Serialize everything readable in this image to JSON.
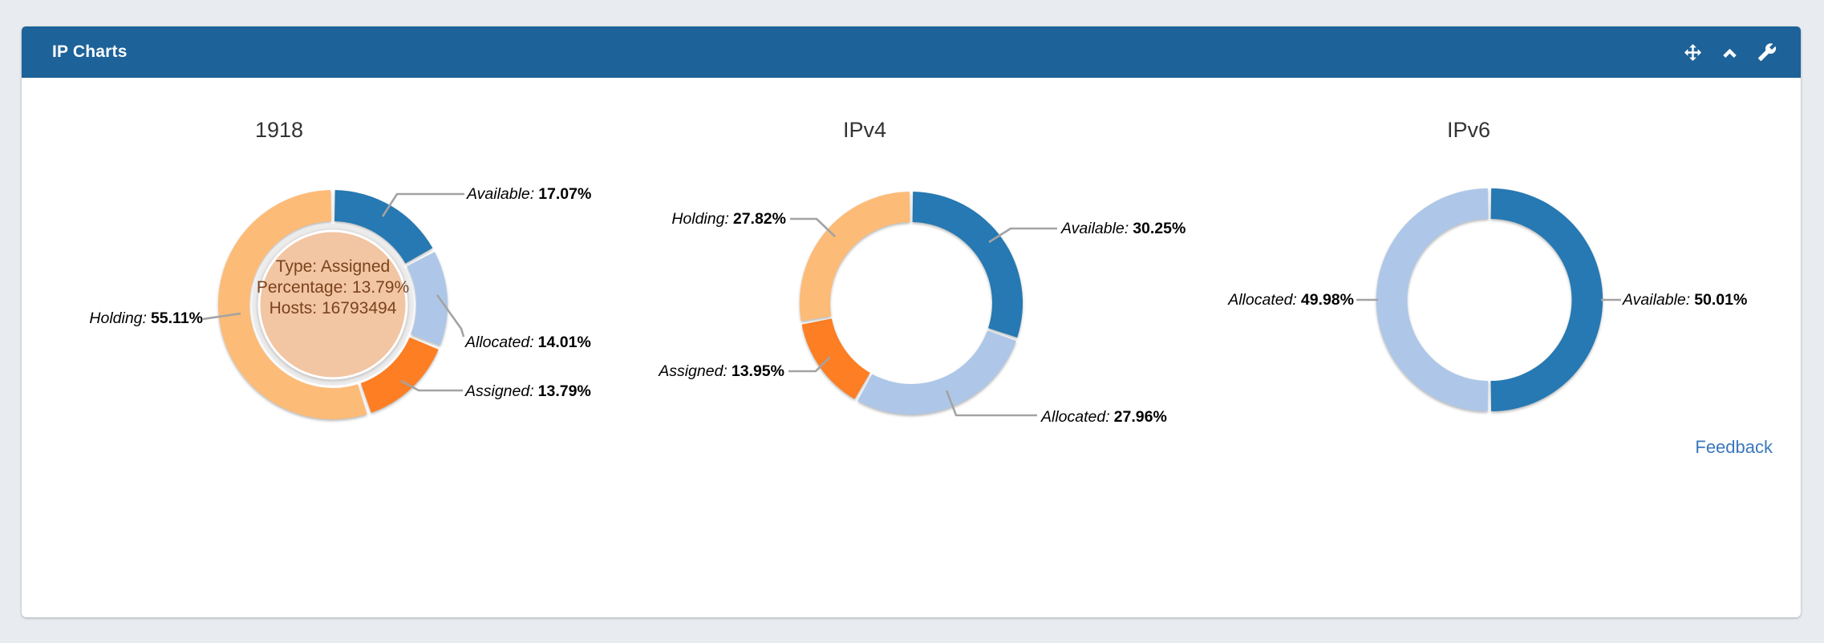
{
  "header": {
    "title": "IP Charts",
    "icons": [
      {
        "name": "move-icon"
      },
      {
        "name": "collapse-icon"
      },
      {
        "name": "wrench-icon"
      }
    ]
  },
  "footer": {
    "feedback_label": "Feedback"
  },
  "colors": {
    "header_bg": "#1d6299",
    "available": "#2679b2",
    "allocated": "#aec7e8",
    "assigned": "#fd7e23",
    "holding": "#fdbb78",
    "tooltip_bg": "#f2c5a3",
    "tooltip_text": "#7a431d",
    "leader_line": "#a3a3a3",
    "feedback_link": "#3a78bc"
  },
  "chart_data": [
    {
      "type": "pie",
      "title": "1918",
      "legend_position": "callout-labels",
      "slices": [
        {
          "name": "Available:",
          "value": 17.07,
          "display": "17.07%",
          "color": "#2679b2"
        },
        {
          "name": "Allocated:",
          "value": 14.01,
          "display": "14.01%",
          "color": "#aec7e8"
        },
        {
          "name": "Assigned:",
          "value": 13.79,
          "display": "13.79%",
          "color": "#fd7e23"
        },
        {
          "name": "Holding:",
          "value": 55.11,
          "display": "55.11%",
          "color": "#fdbb78"
        }
      ],
      "center_tooltip": {
        "lines": [
          "Type: Assigned",
          "Percentage: 13.79%",
          "Hosts: 16793494"
        ]
      }
    },
    {
      "type": "pie",
      "title": "IPv4",
      "legend_position": "callout-labels",
      "slices": [
        {
          "name": "Available:",
          "value": 30.25,
          "display": "30.25%",
          "color": "#2679b2"
        },
        {
          "name": "Allocated:",
          "value": 27.96,
          "display": "27.96%",
          "color": "#aec7e8"
        },
        {
          "name": "Assigned:",
          "value": 13.95,
          "display": "13.95%",
          "color": "#fd7e23"
        },
        {
          "name": "Holding:",
          "value": 27.82,
          "display": "27.82%",
          "color": "#fdbb78"
        }
      ]
    },
    {
      "type": "pie",
      "title": "IPv6",
      "legend_position": "callout-labels",
      "slices": [
        {
          "name": "Available:",
          "value": 50.01,
          "display": "50.01%",
          "color": "#2679b2"
        },
        {
          "name": "Allocated:",
          "value": 49.98,
          "display": "49.98%",
          "color": "#aec7e8"
        }
      ]
    }
  ]
}
